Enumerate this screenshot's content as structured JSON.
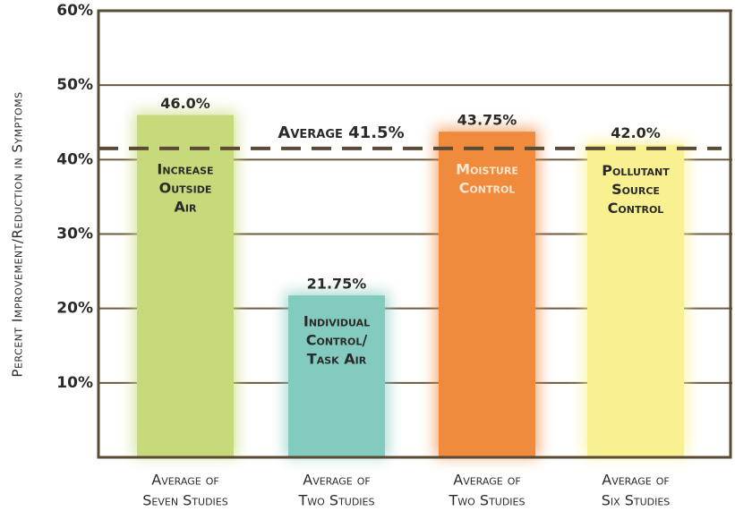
{
  "chart_data": {
    "type": "bar",
    "y_label": "Percent Improvement/Reduction in Symptoms",
    "categories": [
      [
        "Average of",
        "Seven Studies"
      ],
      [
        "Average of",
        "Two Studies"
      ],
      [
        "Average of",
        "Two Studies"
      ],
      [
        "Average of",
        "Six Studies"
      ]
    ],
    "bar_labels": [
      [
        "Increase",
        "Outside",
        "Air"
      ],
      [
        "Individual",
        "Control/",
        "Task Air"
      ],
      [
        "Moisture",
        "Control"
      ],
      [
        "Pollutant",
        "Source",
        "Control"
      ]
    ],
    "values": [
      46.0,
      21.75,
      43.75,
      42.0
    ],
    "value_labels": [
      "46.0%",
      "21.75%",
      "43.75%",
      "42.0%"
    ],
    "colors": [
      "#c6da7c",
      "#84cbbf",
      "#f08b3e",
      "#f9f08f"
    ],
    "average": {
      "value": 41.5,
      "label": "Average 41.5%"
    },
    "ylim": [
      0,
      60
    ],
    "yticks": [
      {
        "value": 10,
        "label": "10%"
      },
      {
        "value": 20,
        "label": "20%"
      },
      {
        "value": 30,
        "label": "30%"
      },
      {
        "value": 40,
        "label": "40%"
      },
      {
        "value": 50,
        "label": "50%"
      },
      {
        "value": 60,
        "label": "60%"
      }
    ],
    "grid": true
  }
}
